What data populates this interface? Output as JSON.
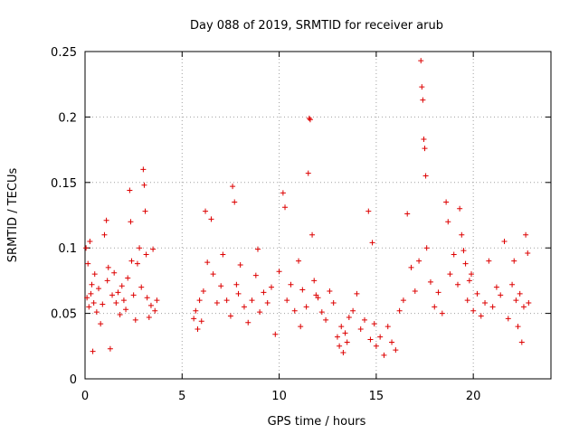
{
  "chart_data": {
    "type": "scatter",
    "title": "Day 088 of 2019, SRMTID for receiver arub",
    "xlabel": "GPS time / hours",
    "ylabel": "SRMTID / TECUs",
    "xlim": [
      0,
      24
    ],
    "ylim": [
      0,
      0.25
    ],
    "x_ticks": [
      0,
      5,
      10,
      15,
      20
    ],
    "x_tick_labels": [
      "0",
      "5",
      "10",
      "15",
      "20"
    ],
    "y_ticks": [
      0,
      0.05,
      0.1,
      0.15,
      0.2,
      0.25
    ],
    "y_tick_labels": [
      "0",
      "0.05",
      "0.1",
      "0.15",
      "0.2",
      "0.25"
    ],
    "grid": true,
    "marker": "+",
    "color": "#dd0000",
    "series": [
      {
        "name": "SRMTID",
        "points": [
          [
            0.05,
            0.1
          ],
          [
            0.1,
            0.062
          ],
          [
            0.15,
            0.088
          ],
          [
            0.2,
            0.055
          ],
          [
            0.25,
            0.105
          ],
          [
            0.3,
            0.065
          ],
          [
            0.35,
            0.072
          ],
          [
            0.4,
            0.021
          ],
          [
            0.45,
            0.058
          ],
          [
            0.5,
            0.08
          ],
          [
            0.6,
            0.051
          ],
          [
            0.7,
            0.069
          ],
          [
            0.8,
            0.042
          ],
          [
            0.9,
            0.057
          ],
          [
            1.0,
            0.11
          ],
          [
            1.1,
            0.121
          ],
          [
            1.15,
            0.075
          ],
          [
            1.2,
            0.085
          ],
          [
            1.3,
            0.023
          ],
          [
            1.4,
            0.064
          ],
          [
            1.5,
            0.081
          ],
          [
            1.6,
            0.058
          ],
          [
            1.7,
            0.066
          ],
          [
            1.8,
            0.049
          ],
          [
            1.9,
            0.071
          ],
          [
            2.0,
            0.06
          ],
          [
            2.1,
            0.053
          ],
          [
            2.2,
            0.077
          ],
          [
            2.3,
            0.144
          ],
          [
            2.35,
            0.12
          ],
          [
            2.4,
            0.09
          ],
          [
            2.5,
            0.064
          ],
          [
            2.6,
            0.045
          ],
          [
            2.7,
            0.088
          ],
          [
            2.8,
            0.1
          ],
          [
            2.9,
            0.07
          ],
          [
            3.0,
            0.16
          ],
          [
            3.05,
            0.148
          ],
          [
            3.1,
            0.128
          ],
          [
            3.15,
            0.095
          ],
          [
            3.2,
            0.062
          ],
          [
            3.3,
            0.047
          ],
          [
            3.4,
            0.056
          ],
          [
            3.5,
            0.099
          ],
          [
            3.6,
            0.052
          ],
          [
            3.7,
            0.06
          ],
          [
            5.6,
            0.046
          ],
          [
            5.7,
            0.052
          ],
          [
            5.8,
            0.038
          ],
          [
            5.9,
            0.06
          ],
          [
            6.0,
            0.044
          ],
          [
            6.1,
            0.067
          ],
          [
            6.2,
            0.128
          ],
          [
            6.3,
            0.089
          ],
          [
            6.5,
            0.122
          ],
          [
            6.6,
            0.08
          ],
          [
            6.8,
            0.058
          ],
          [
            7.0,
            0.071
          ],
          [
            7.1,
            0.095
          ],
          [
            7.3,
            0.06
          ],
          [
            7.5,
            0.048
          ],
          [
            7.6,
            0.147
          ],
          [
            7.7,
            0.135
          ],
          [
            7.8,
            0.072
          ],
          [
            7.9,
            0.065
          ],
          [
            8.0,
            0.087
          ],
          [
            8.2,
            0.055
          ],
          [
            8.4,
            0.043
          ],
          [
            8.6,
            0.06
          ],
          [
            8.8,
            0.079
          ],
          [
            8.9,
            0.099
          ],
          [
            9.0,
            0.051
          ],
          [
            9.2,
            0.066
          ],
          [
            9.4,
            0.058
          ],
          [
            9.6,
            0.07
          ],
          [
            9.8,
            0.034
          ],
          [
            10.0,
            0.082
          ],
          [
            10.2,
            0.142
          ],
          [
            10.3,
            0.131
          ],
          [
            10.4,
            0.06
          ],
          [
            10.6,
            0.072
          ],
          [
            10.8,
            0.052
          ],
          [
            11.0,
            0.09
          ],
          [
            11.1,
            0.04
          ],
          [
            11.2,
            0.068
          ],
          [
            11.4,
            0.055
          ],
          [
            11.5,
            0.157
          ],
          [
            11.55,
            0.199
          ],
          [
            11.6,
            0.198
          ],
          [
            11.7,
            0.11
          ],
          [
            11.8,
            0.075
          ],
          [
            11.9,
            0.064
          ],
          [
            12.0,
            0.062
          ],
          [
            12.2,
            0.051
          ],
          [
            12.4,
            0.045
          ],
          [
            12.6,
            0.067
          ],
          [
            12.8,
            0.058
          ],
          [
            13.0,
            0.032
          ],
          [
            13.1,
            0.025
          ],
          [
            13.2,
            0.04
          ],
          [
            13.3,
            0.02
          ],
          [
            13.4,
            0.035
          ],
          [
            13.5,
            0.028
          ],
          [
            13.6,
            0.047
          ],
          [
            13.8,
            0.052
          ],
          [
            14.0,
            0.065
          ],
          [
            14.2,
            0.038
          ],
          [
            14.4,
            0.045
          ],
          [
            14.6,
            0.128
          ],
          [
            14.7,
            0.03
          ],
          [
            14.8,
            0.104
          ],
          [
            14.9,
            0.042
          ],
          [
            15.0,
            0.025
          ],
          [
            15.2,
            0.032
          ],
          [
            15.4,
            0.018
          ],
          [
            15.6,
            0.04
          ],
          [
            15.8,
            0.028
          ],
          [
            16.0,
            0.022
          ],
          [
            16.2,
            0.052
          ],
          [
            16.4,
            0.06
          ],
          [
            16.6,
            0.126
          ],
          [
            16.8,
            0.085
          ],
          [
            17.0,
            0.067
          ],
          [
            17.2,
            0.09
          ],
          [
            17.3,
            0.243
          ],
          [
            17.35,
            0.223
          ],
          [
            17.4,
            0.213
          ],
          [
            17.45,
            0.183
          ],
          [
            17.5,
            0.176
          ],
          [
            17.55,
            0.155
          ],
          [
            17.6,
            0.1
          ],
          [
            17.8,
            0.074
          ],
          [
            18.0,
            0.055
          ],
          [
            18.2,
            0.066
          ],
          [
            18.4,
            0.05
          ],
          [
            18.6,
            0.135
          ],
          [
            18.7,
            0.12
          ],
          [
            18.8,
            0.08
          ],
          [
            19.0,
            0.095
          ],
          [
            19.2,
            0.072
          ],
          [
            19.3,
            0.13
          ],
          [
            19.4,
            0.11
          ],
          [
            19.5,
            0.098
          ],
          [
            19.6,
            0.088
          ],
          [
            19.7,
            0.06
          ],
          [
            19.8,
            0.075
          ],
          [
            19.9,
            0.08
          ],
          [
            20.0,
            0.052
          ],
          [
            20.2,
            0.065
          ],
          [
            20.4,
            0.048
          ],
          [
            20.6,
            0.058
          ],
          [
            20.8,
            0.09
          ],
          [
            21.0,
            0.055
          ],
          [
            21.2,
            0.07
          ],
          [
            21.4,
            0.064
          ],
          [
            21.6,
            0.105
          ],
          [
            21.8,
            0.046
          ],
          [
            22.0,
            0.072
          ],
          [
            22.1,
            0.09
          ],
          [
            22.2,
            0.06
          ],
          [
            22.3,
            0.04
          ],
          [
            22.4,
            0.065
          ],
          [
            22.5,
            0.028
          ],
          [
            22.6,
            0.055
          ],
          [
            22.7,
            0.11
          ],
          [
            22.8,
            0.096
          ],
          [
            22.85,
            0.058
          ]
        ]
      }
    ]
  }
}
